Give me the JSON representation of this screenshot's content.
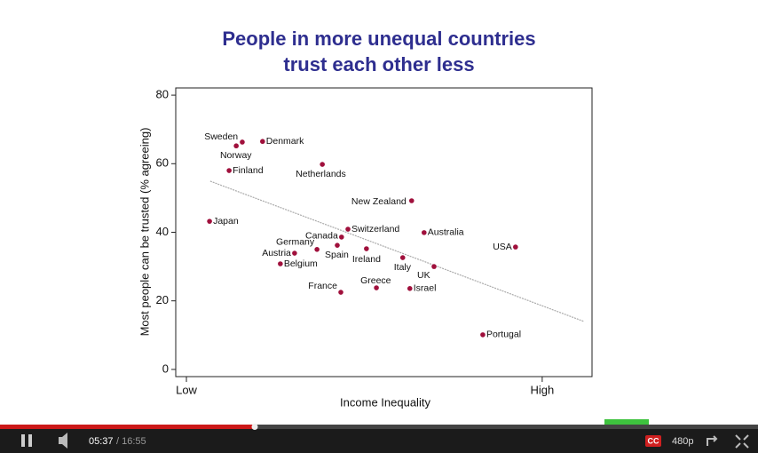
{
  "chart_data": {
    "type": "scatter",
    "title": [
      "People in more unequal countries",
      "trust each other less"
    ],
    "x_label": "Income Inequality",
    "y_label": "Most people can be trusted (% agreeing)",
    "color": "#a0103c",
    "trend_color": "#aaaaaa",
    "labels": [
      "Sweden",
      "Norway",
      "Denmark",
      "Finland",
      "Netherlands",
      "New Zealand",
      "Japan",
      "Switzerland",
      "Australia",
      "USA",
      "Canada",
      "Germany",
      "Spain",
      "Austria",
      "Ireland",
      "Belgium",
      "Italy",
      "UK",
      "France",
      "Greece",
      "Israel",
      "Portugal"
    ],
    "x": [
      1.4,
      1.57,
      2.14,
      1.2,
      3.82,
      6.33,
      0.65,
      4.54,
      6.68,
      9.25,
      4.36,
      3.67,
      4.24,
      3.04,
      5.06,
      2.64,
      6.08,
      6.96,
      4.34,
      5.34,
      6.28,
      8.33
    ],
    "values": [
      65.2,
      66.3,
      66.5,
      58.0,
      59.8,
      49.2,
      43.2,
      40.9,
      39.9,
      35.7,
      38.6,
      35.0,
      36.2,
      33.9,
      35.2,
      30.8,
      32.6,
      30.0,
      22.5,
      23.8,
      23.6,
      10.1
    ],
    "trendline": {
      "x": [
        0.67,
        11.17
      ],
      "y": [
        54.9,
        14.0
      ]
    },
    "xlim": [
      -0.3,
      11.4
    ],
    "xticks": [
      {
        "value": 0,
        "label": "Low"
      },
      {
        "value": 10,
        "label": "High"
      }
    ],
    "ylim": [
      -2.1,
      82.1
    ],
    "yticks": [
      0,
      20,
      40,
      60,
      80
    ]
  },
  "player": {
    "time": "05:37",
    "duration": "/ 16:55",
    "cc": "CC",
    "quality": "480p"
  }
}
